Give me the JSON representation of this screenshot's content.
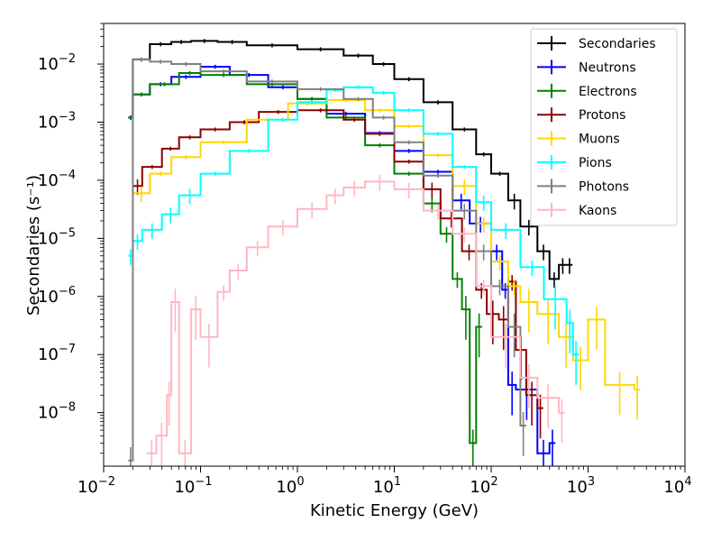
{
  "chart_data": {
    "type": "line",
    "style": "step-histogram-with-error-bars",
    "xlabel": "Kinetic Energy (GeV)",
    "ylabel": "Secondaries (s⁻¹)",
    "xscale": "log",
    "yscale": "log",
    "xlim": [
      0.01,
      10000
    ],
    "ylim": [
      1.2e-09,
      0.05
    ],
    "grid": false,
    "legend_placement": "top-right",
    "x_ticks": [
      {
        "value": 0.01,
        "base": "10",
        "exp": "−2"
      },
      {
        "value": 0.1,
        "base": "10",
        "exp": "−1"
      },
      {
        "value": 1,
        "base": "10",
        "exp": "0"
      },
      {
        "value": 10,
        "base": "10",
        "exp": "1"
      },
      {
        "value": 100,
        "base": "10",
        "exp": "2"
      },
      {
        "value": 1000,
        "base": "10",
        "exp": "3"
      },
      {
        "value": 10000,
        "base": "10",
        "exp": "4"
      }
    ],
    "y_ticks": [
      {
        "value": 1e-08,
        "base": "10",
        "exp": "−8"
      },
      {
        "value": 1e-07,
        "base": "10",
        "exp": "−7"
      },
      {
        "value": 1e-06,
        "base": "10",
        "exp": "−6"
      },
      {
        "value": 1e-05,
        "base": "10",
        "exp": "−5"
      },
      {
        "value": 0.0001,
        "base": "10",
        "exp": "−4"
      },
      {
        "value": 0.001,
        "base": "10",
        "exp": "−3"
      },
      {
        "value": 0.01,
        "base": "10",
        "exp": "−2"
      }
    ],
    "series": [
      {
        "name": "Secondaries",
        "color": "#000000",
        "points": [
          [
            0.018,
            0.0012
          ],
          [
            0.02,
            0.012
          ],
          [
            0.03,
            0.022
          ],
          [
            0.05,
            0.024
          ],
          [
            0.08,
            0.025
          ],
          [
            0.15,
            0.024
          ],
          [
            0.3,
            0.021
          ],
          [
            1,
            0.018
          ],
          [
            3,
            0.014
          ],
          [
            6,
            0.01
          ],
          [
            10,
            0.0055
          ],
          [
            20,
            0.0022
          ],
          [
            40,
            0.00075
          ],
          [
            70,
            0.00028
          ],
          [
            100,
            0.00013
          ],
          [
            150,
            4.5e-05
          ],
          [
            200,
            1.6e-05
          ],
          [
            300,
            6e-06
          ],
          [
            400,
            2e-06
          ],
          [
            500,
            3.5e-06
          ],
          [
            600,
            3.5e-06
          ]
        ]
      },
      {
        "name": "Neutrons",
        "color": "#0000ff",
        "points": [
          [
            0.018,
            0.0012
          ],
          [
            0.02,
            0.003
          ],
          [
            0.03,
            0.0045
          ],
          [
            0.05,
            0.006
          ],
          [
            0.1,
            0.009
          ],
          [
            0.2,
            0.0065
          ],
          [
            0.5,
            0.004
          ],
          [
            1,
            0.0025
          ],
          [
            2,
            0.0014
          ],
          [
            5,
            0.00065
          ],
          [
            10,
            0.00032
          ],
          [
            20,
            0.00014
          ],
          [
            40,
            4.5e-05
          ],
          [
            60,
            1.8e-05
          ],
          [
            100,
            6e-06
          ],
          [
            130,
            1.3e-06
          ],
          [
            150,
            3e-08
          ],
          [
            180,
            2.5e-08
          ],
          [
            300,
            2e-09
          ],
          [
            400,
            3e-09
          ]
        ]
      },
      {
        "name": "Electrons",
        "color": "#008000",
        "points": [
          [
            0.018,
            0.0012
          ],
          [
            0.02,
            0.003
          ],
          [
            0.03,
            0.0045
          ],
          [
            0.06,
            0.007
          ],
          [
            0.1,
            0.0065
          ],
          [
            0.3,
            0.0045
          ],
          [
            1,
            0.0025
          ],
          [
            2,
            0.0012
          ],
          [
            5,
            0.0004
          ],
          [
            10,
            0.00013
          ],
          [
            20,
            4e-05
          ],
          [
            30,
            1.2e-05
          ],
          [
            40,
            2e-06
          ],
          [
            50,
            6e-07
          ],
          [
            60,
            3e-09
          ],
          [
            70,
            3e-07
          ]
        ]
      },
      {
        "name": "Protons",
        "color": "#8b0000",
        "points": [
          [
            0.02,
            8e-05
          ],
          [
            0.025,
            0.00017
          ],
          [
            0.04,
            0.00035
          ],
          [
            0.06,
            0.00055
          ],
          [
            0.1,
            0.00075
          ],
          [
            0.2,
            0.001
          ],
          [
            0.4,
            0.0015
          ],
          [
            1,
            0.0016
          ],
          [
            3,
            0.0011
          ],
          [
            5,
            0.00063
          ],
          [
            10,
            0.00021
          ],
          [
            20,
            7e-05
          ],
          [
            30,
            2.2e-05
          ],
          [
            50,
            6e-06
          ],
          [
            70,
            1.3e-06
          ],
          [
            90,
            5e-07
          ],
          [
            120,
            4e-07
          ],
          [
            150,
            1.8e-06
          ],
          [
            180,
            1.2e-07
          ],
          [
            230,
            2e-08
          ],
          [
            300,
            1.2e-08
          ]
        ]
      },
      {
        "name": "Muons",
        "color": "#ffd700",
        "points": [
          [
            0.02,
            6e-05
          ],
          [
            0.03,
            0.00013
          ],
          [
            0.05,
            0.00025
          ],
          [
            0.1,
            0.00045
          ],
          [
            0.3,
            0.0011
          ],
          [
            0.8,
            0.0021
          ],
          [
            2,
            0.0024
          ],
          [
            5,
            0.0016
          ],
          [
            10,
            0.00085
          ],
          [
            20,
            0.00027
          ],
          [
            40,
            8e-05
          ],
          [
            70,
            1.8e-05
          ],
          [
            100,
            4e-06
          ],
          [
            150,
            1.5e-06
          ],
          [
            200,
            8e-07
          ],
          [
            300,
            5e-07
          ],
          [
            500,
            2e-07
          ],
          [
            700,
            8e-08
          ],
          [
            1000,
            4e-07
          ],
          [
            1500,
            3e-08
          ],
          [
            3000,
            2.5e-08
          ]
        ]
      },
      {
        "name": "Pions",
        "color": "#00ffff",
        "points": [
          [
            0.018,
            5e-06
          ],
          [
            0.02,
            9e-06
          ],
          [
            0.025,
            1.4e-05
          ],
          [
            0.04,
            2.6e-05
          ],
          [
            0.06,
            5.5e-05
          ],
          [
            0.1,
            0.00013
          ],
          [
            0.2,
            0.00032
          ],
          [
            0.5,
            0.0011
          ],
          [
            1,
            0.0022
          ],
          [
            2,
            0.0036
          ],
          [
            3,
            0.004
          ],
          [
            6,
            0.0032
          ],
          [
            10,
            0.0016
          ],
          [
            20,
            0.00063
          ],
          [
            40,
            0.00017
          ],
          [
            70,
            4.2e-05
          ],
          [
            100,
            1.4e-05
          ],
          [
            200,
            3.2e-06
          ],
          [
            350,
            9e-07
          ],
          [
            600,
            3.5e-07
          ],
          [
            700,
            1e-07
          ]
        ]
      },
      {
        "name": "Photons",
        "color": "#808080",
        "points": [
          [
            0.018,
            1.5e-09
          ],
          [
            0.02,
            0.012
          ],
          [
            0.03,
            0.011
          ],
          [
            0.05,
            0.01
          ],
          [
            0.1,
            0.0075
          ],
          [
            0.3,
            0.005
          ],
          [
            1,
            0.0037
          ],
          [
            3,
            0.0025
          ],
          [
            6,
            0.0012
          ],
          [
            10,
            0.00045
          ],
          [
            20,
            0.00012
          ],
          [
            40,
            3e-05
          ],
          [
            70,
            6e-06
          ],
          [
            100,
            1.5e-06
          ],
          [
            150,
            3e-07
          ],
          [
            200,
            6e-09
          ]
        ]
      },
      {
        "name": "Kaons",
        "color": "#ffb6c1",
        "points": [
          [
            0.028,
            2e-09
          ],
          [
            0.035,
            4e-09
          ],
          [
            0.045,
            2e-08
          ],
          [
            0.05,
            8e-07
          ],
          [
            0.06,
            2e-09
          ],
          [
            0.08,
            6e-07
          ],
          [
            0.1,
            2e-07
          ],
          [
            0.15,
            1.2e-06
          ],
          [
            0.2,
            2.8e-06
          ],
          [
            0.3,
            7e-06
          ],
          [
            0.5,
            1.6e-05
          ],
          [
            1,
            3.2e-05
          ],
          [
            2,
            5.5e-05
          ],
          [
            3,
            7.5e-05
          ],
          [
            5,
            9.5e-05
          ],
          [
            10,
            7e-05
          ],
          [
            20,
            3e-05
          ],
          [
            40,
            1.2e-05
          ],
          [
            70,
            1.5e-06
          ],
          [
            100,
            2e-07
          ],
          [
            200,
            4e-08
          ],
          [
            300,
            1.8e-08
          ],
          [
            500,
            1e-08
          ]
        ]
      }
    ]
  }
}
